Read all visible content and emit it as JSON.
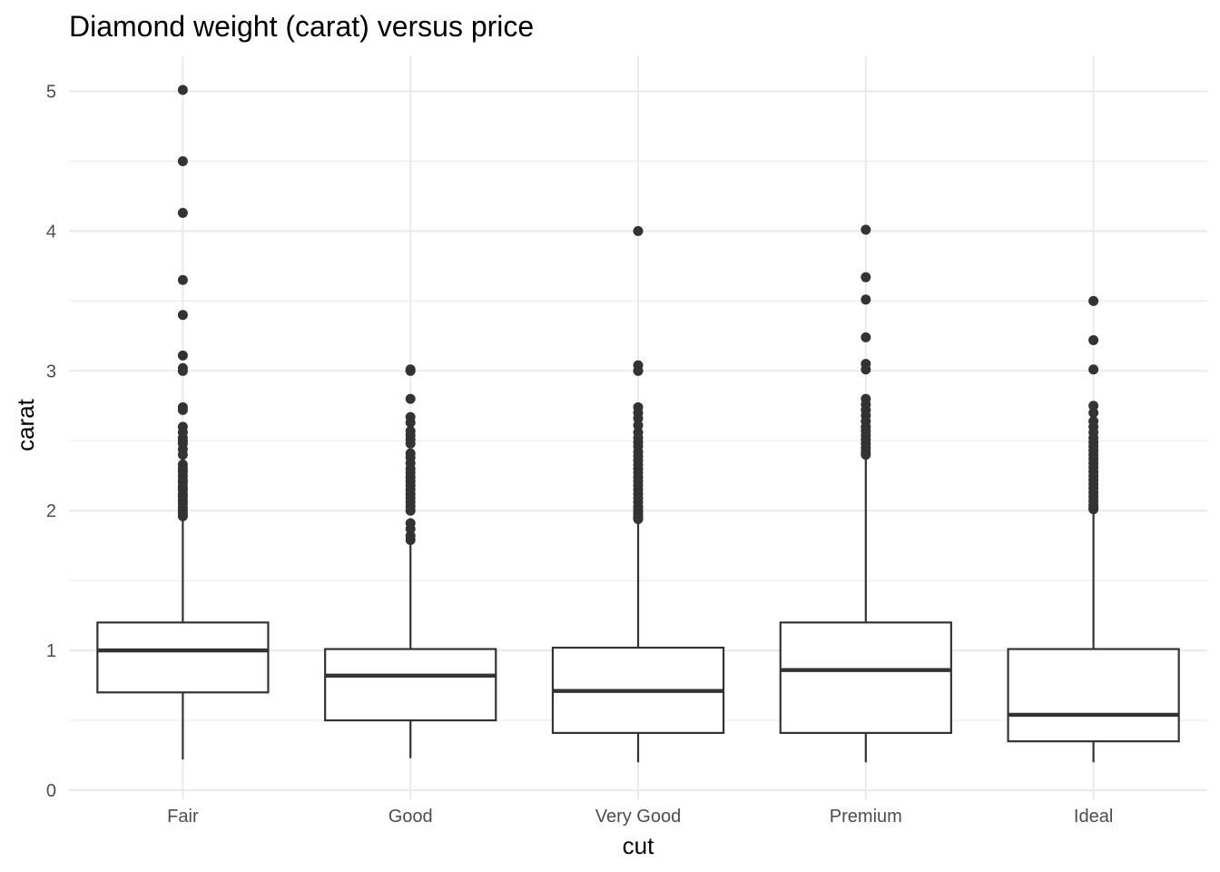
{
  "chart_data": {
    "type": "boxplot",
    "title": "Diamond weight (carat) versus price",
    "xlabel": "cut",
    "ylabel": "carat",
    "ylim": [
      0,
      5.2
    ],
    "yticks": [
      0,
      1,
      2,
      3,
      4,
      5
    ],
    "grid": true,
    "categories": [
      "Fair",
      "Good",
      "Very Good",
      "Premium",
      "Ideal"
    ],
    "boxes": [
      {
        "category": "Fair",
        "whisker_low": 0.22,
        "q1": 0.7,
        "median": 1.0,
        "q3": 1.2,
        "whisker_high": 1.95,
        "outliers": [
          5.01,
          4.5,
          4.13,
          3.65,
          3.4,
          3.11,
          3.02,
          3.0,
          2.74,
          2.72,
          2.6,
          2.56,
          2.52,
          2.5,
          2.48,
          2.44,
          2.4,
          2.33,
          2.3,
          2.28,
          2.25,
          2.22,
          2.2,
          2.17,
          2.15,
          2.12,
          2.1,
          2.07,
          2.05,
          2.02,
          2.0,
          1.98,
          1.96
        ]
      },
      {
        "category": "Good",
        "whisker_low": 0.23,
        "q1": 0.5,
        "median": 0.82,
        "q3": 1.01,
        "whisker_high": 1.77,
        "outliers": [
          3.01,
          3.0,
          2.8,
          2.67,
          2.63,
          2.57,
          2.54,
          2.51,
          2.48,
          2.41,
          2.38,
          2.34,
          2.3,
          2.27,
          2.24,
          2.21,
          2.18,
          2.15,
          2.12,
          2.09,
          2.06,
          2.03,
          2.0,
          1.91,
          1.87,
          1.82,
          1.79
        ]
      },
      {
        "category": "Very Good",
        "whisker_low": 0.2,
        "q1": 0.41,
        "median": 0.71,
        "q3": 1.02,
        "whisker_high": 1.93,
        "outliers": [
          4.0,
          3.04,
          3.0,
          2.74,
          2.7,
          2.66,
          2.61,
          2.56,
          2.52,
          2.49,
          2.46,
          2.42,
          2.39,
          2.36,
          2.33,
          2.3,
          2.27,
          2.24,
          2.21,
          2.18,
          2.15,
          2.12,
          2.09,
          2.06,
          2.03,
          2.01,
          1.99,
          1.97,
          1.95,
          1.94
        ]
      },
      {
        "category": "Premium",
        "whisker_low": 0.2,
        "q1": 0.41,
        "median": 0.86,
        "q3": 1.2,
        "whisker_high": 2.38,
        "outliers": [
          4.01,
          3.67,
          3.51,
          3.24,
          3.05,
          3.01,
          2.8,
          2.76,
          2.72,
          2.68,
          2.64,
          2.6,
          2.57,
          2.54,
          2.51,
          2.48,
          2.45,
          2.42,
          2.4
        ]
      },
      {
        "category": "Ideal",
        "whisker_low": 0.2,
        "q1": 0.35,
        "median": 0.54,
        "q3": 1.01,
        "whisker_high": 2.0,
        "outliers": [
          3.5,
          3.22,
          3.01,
          2.75,
          2.7,
          2.64,
          2.6,
          2.56,
          2.52,
          2.49,
          2.46,
          2.43,
          2.4,
          2.37,
          2.34,
          2.31,
          2.28,
          2.25,
          2.22,
          2.19,
          2.16,
          2.13,
          2.1,
          2.07,
          2.04,
          2.02,
          2.01
        ]
      }
    ],
    "colors": {
      "box_stroke": "#333333",
      "box_fill": "#ffffff",
      "grid": "#ebebeb",
      "tick_text": "#4d4d4d"
    }
  }
}
